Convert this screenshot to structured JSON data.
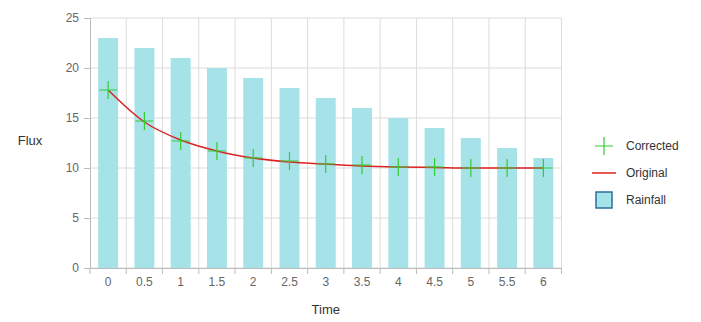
{
  "chart_data": {
    "type": "bar",
    "x_label": "Time",
    "y_label": "Flux",
    "categories": [
      "0",
      "0.5",
      "1",
      "1.5",
      "2",
      "2.5",
      "3",
      "3.5",
      "4",
      "4.5",
      "5",
      "5.5",
      "6"
    ],
    "series": [
      {
        "name": "Corrected",
        "type": "scatter",
        "marker": "cross",
        "color": "#33cc33",
        "values": [
          17.8,
          14.7,
          12.7,
          11.7,
          11.0,
          10.7,
          10.4,
          10.3,
          10.1,
          10.1,
          10.0,
          10.0,
          10.0
        ]
      },
      {
        "name": "Original",
        "type": "line",
        "line_style": "solid",
        "color": "#dd2222",
        "values": [
          17.8,
          14.6,
          12.8,
          11.7,
          11.0,
          10.6,
          10.4,
          10.2,
          10.1,
          10.05,
          10.0,
          10.0,
          10.0
        ]
      },
      {
        "name": "Rainfall",
        "type": "bar",
        "color": "#a6e3e9",
        "values": [
          23,
          22,
          21,
          20,
          19,
          18,
          17,
          16,
          15,
          14,
          13,
          12,
          11
        ]
      }
    ],
    "ylim": [
      0,
      25
    ],
    "yticks": [
      0,
      5,
      10,
      15,
      20,
      25
    ],
    "grid": true,
    "legend": "right"
  }
}
